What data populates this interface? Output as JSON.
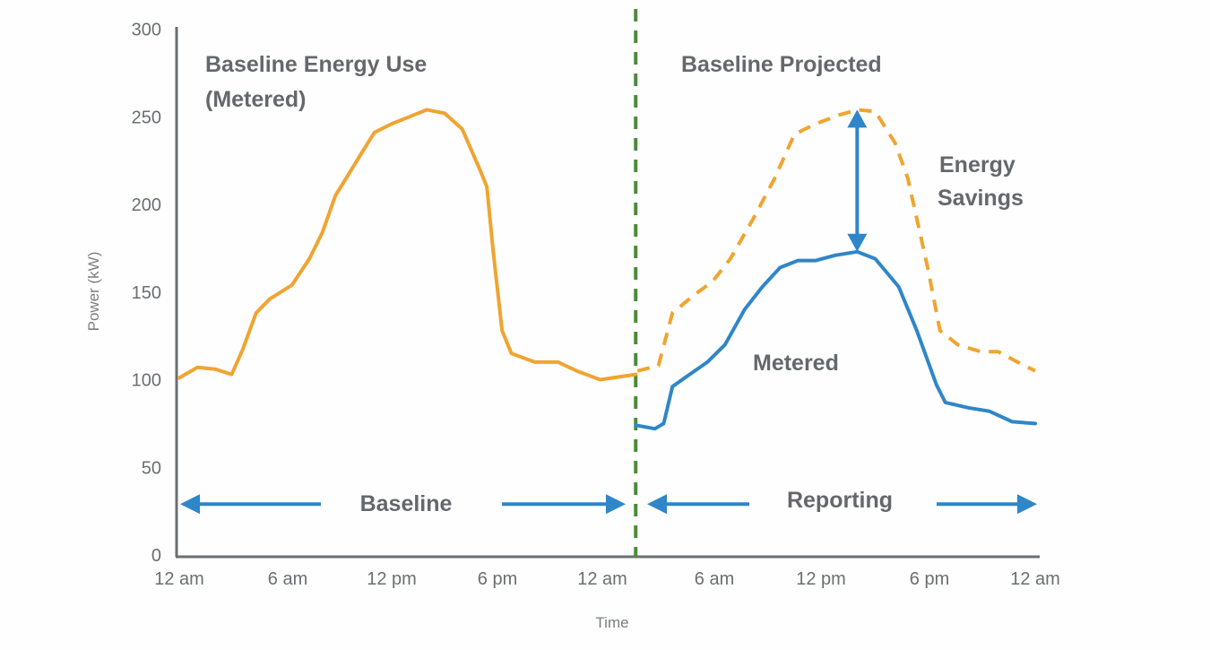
{
  "chart_data": {
    "type": "line",
    "title": "",
    "xlabel": "Time",
    "ylabel": "Power (kW)",
    "ylim": [
      0,
      300
    ],
    "xlim_hours": [
      0,
      48
    ],
    "y_ticks": [
      "0",
      "50",
      "100",
      "150",
      "200",
      "250",
      "300"
    ],
    "y_tick_values": [
      0,
      50,
      100,
      150,
      200,
      250,
      300
    ],
    "x_ticks": [
      "12 am",
      "6 am",
      "12 pm",
      "6 pm",
      "12 am",
      "6 am",
      "12 pm",
      "6 pm",
      "12 am"
    ],
    "x_tick_hours": [
      0,
      6,
      12,
      18,
      24,
      30,
      36,
      42,
      48
    ],
    "grid": false,
    "divider_hour": 25.5,
    "colors": {
      "baseline": "#f0a431",
      "metered": "#2f86c8",
      "divider": "#4d8a3a",
      "axis": "#6b6e72"
    },
    "series": [
      {
        "name": "Baseline Energy Use (Metered)",
        "style": "solid",
        "color": "#f0a431",
        "x": [
          0,
          1,
          2,
          2.9,
          3.5,
          4.25,
          5,
          6.25,
          7.25,
          8,
          8.75,
          10,
          11,
          12,
          13,
          14,
          15,
          16,
          17,
          17.4,
          17.75,
          18.25,
          18.75,
          20,
          21.25,
          22.25,
          23.5,
          25.5
        ],
        "y": [
          101,
          107,
          106,
          103,
          117,
          138,
          146,
          154,
          169,
          184,
          205,
          225,
          241,
          246,
          250,
          254,
          252,
          243,
          220,
          210,
          174,
          128,
          115,
          110,
          110,
          105,
          100,
          103
        ]
      },
      {
        "name": "Baseline Projected",
        "style": "dashed",
        "color": "#f0a431",
        "x": [
          25.6,
          26.8,
          27.6,
          28.8,
          29.9,
          30.9,
          32.2,
          33.4,
          34.5,
          35.7,
          37,
          38,
          39,
          40.1,
          40.8,
          41.9,
          42.6,
          43.6,
          44.9,
          45.9,
          47,
          48
        ],
        "y": [
          105,
          108,
          138,
          148,
          156,
          169,
          192,
          215,
          240,
          246,
          251,
          254,
          253,
          235,
          215,
          164,
          128,
          120,
          116,
          116,
          110,
          105
        ]
      },
      {
        "name": "Metered",
        "style": "solid",
        "color": "#2f86c8",
        "x": [
          25.5,
          26.6,
          27.1,
          27.6,
          28.3,
          29.6,
          30.6,
          31.7,
          32.7,
          33.7,
          34.7,
          35.7,
          36.8,
          38,
          39,
          40.3,
          41.3,
          42.4,
          42.9,
          44.2,
          45.4,
          46.7,
          48
        ],
        "y": [
          74,
          72,
          75,
          96,
          101,
          110,
          120,
          140,
          153,
          164,
          168,
          168,
          171,
          173,
          169,
          153,
          128,
          97,
          87,
          84,
          82,
          76,
          75
        ]
      }
    ],
    "annotations": {
      "baseline_use": [
        "Baseline Energy Use",
        "(Metered)"
      ],
      "baseline_projected": "Baseline Projected",
      "energy_savings": [
        "Energy",
        "Savings"
      ],
      "metered": "Metered",
      "baseline_period": "Baseline",
      "reporting_period": "Reporting",
      "savings_arrow": {
        "hour": 38,
        "from": 173,
        "to": 254
      },
      "period_arrow_value": 29
    }
  }
}
